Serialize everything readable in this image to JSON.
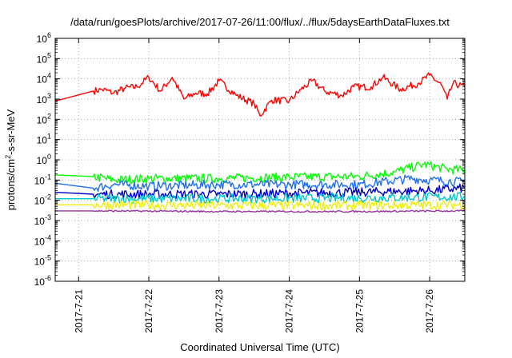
{
  "chart_data": {
    "type": "line",
    "title": "/data/run/goesPlots/archive/2017-07-26/11:00/flux/../flux/5daysEarthDataFluxes.txt",
    "xlabel": "Coordinated Universal Time (UTC)",
    "ylabel_parts": {
      "pre": "protons/cm",
      "sup": "2",
      "post": "-s-sr-MeV"
    },
    "yscale": "log",
    "ylim_exp": [
      -6,
      6
    ],
    "ytick_exponents": [
      "-6",
      "-5",
      "-4",
      "-3",
      "-2",
      "-1",
      "0",
      "1",
      "2",
      "3",
      "4",
      "5",
      "6"
    ],
    "ytick_base": "10",
    "xlim": [
      "2017-07-20 16:00",
      "2017-07-26 12:00"
    ],
    "x_ticks": [
      "2017-7-21",
      "2017-7-22",
      "2017-7-23",
      "2017-7-24",
      "2017-7-25",
      "2017-7-26"
    ],
    "grid": true,
    "legend": "none",
    "series": [
      {
        "color": "#ff0000",
        "points": [
          [
            "2017-07-20 16:00",
            800
          ],
          [
            "2017-07-21 05:00",
            2500
          ],
          [
            "2017-07-21 08:00",
            3000
          ],
          [
            "2017-07-21 12:00",
            2000
          ],
          [
            "2017-07-21 16:00",
            3500
          ],
          [
            "2017-07-21 20:00",
            4000
          ],
          [
            "2017-07-22 00:00",
            12000
          ],
          [
            "2017-07-22 04:00",
            2500
          ],
          [
            "2017-07-22 08:00",
            12000
          ],
          [
            "2017-07-22 12:00",
            1000
          ],
          [
            "2017-07-22 16:00",
            2000
          ],
          [
            "2017-07-22 20:00",
            1800
          ],
          [
            "2017-07-23 00:00",
            8000
          ],
          [
            "2017-07-23 06:00",
            1500
          ],
          [
            "2017-07-23 12:00",
            600
          ],
          [
            "2017-07-23 14:00",
            150
          ],
          [
            "2017-07-23 18:00",
            900
          ],
          [
            "2017-07-24 00:00",
            800
          ],
          [
            "2017-07-24 04:00",
            3000
          ],
          [
            "2017-07-24 08:00",
            8000
          ],
          [
            "2017-07-24 12:00",
            2500
          ],
          [
            "2017-07-24 18:00",
            1500
          ],
          [
            "2017-07-24 22:00",
            4000
          ],
          [
            "2017-07-25 04:00",
            4000
          ],
          [
            "2017-07-25 08:00",
            12000
          ],
          [
            "2017-07-25 14:00",
            3000
          ],
          [
            "2017-07-25 20:00",
            6000
          ],
          [
            "2017-07-26 00:00",
            15000
          ],
          [
            "2017-07-26 04:00",
            5000
          ],
          [
            "2017-07-26 06:00",
            1000
          ],
          [
            "2017-07-26 08:00",
            6000
          ],
          [
            "2017-07-26 12:00",
            4000
          ]
        ]
      },
      {
        "color": "#00ff00",
        "points": [
          [
            "2017-07-20 16:00",
            0.18
          ],
          [
            "2017-07-21 05:00",
            0.15
          ],
          [
            "2017-07-21 12:00",
            0.1
          ],
          [
            "2017-07-22 00:00",
            0.12
          ],
          [
            "2017-07-23 00:00",
            0.12
          ],
          [
            "2017-07-24 00:00",
            0.14
          ],
          [
            "2017-07-25 00:00",
            0.15
          ],
          [
            "2017-07-25 12:00",
            0.25
          ],
          [
            "2017-07-25 22:00",
            0.6
          ],
          [
            "2017-07-26 06:00",
            0.35
          ],
          [
            "2017-07-26 12:00",
            0.3
          ]
        ]
      },
      {
        "color": "#1e6ff0",
        "points": [
          [
            "2017-07-20 16:00",
            0.07
          ],
          [
            "2017-07-21 05:00",
            0.04
          ],
          [
            "2017-07-21 12:00",
            0.06
          ],
          [
            "2017-07-22 00:00",
            0.05
          ],
          [
            "2017-07-23 00:00",
            0.06
          ],
          [
            "2017-07-24 00:00",
            0.06
          ],
          [
            "2017-07-25 00:00",
            0.06
          ],
          [
            "2017-07-25 18:00",
            0.12
          ],
          [
            "2017-07-26 00:00",
            0.1
          ],
          [
            "2017-07-26 12:00",
            0.08
          ]
        ]
      },
      {
        "color": "#0000cc",
        "points": [
          [
            "2017-07-20 16:00",
            0.025
          ],
          [
            "2017-07-21 05:00",
            0.02
          ],
          [
            "2017-07-22 00:00",
            0.02
          ],
          [
            "2017-07-23 00:00",
            0.02
          ],
          [
            "2017-07-24 00:00",
            0.022
          ],
          [
            "2017-07-25 00:00",
            0.025
          ],
          [
            "2017-07-26 00:00",
            0.03
          ],
          [
            "2017-07-26 12:00",
            0.04
          ]
        ]
      },
      {
        "color": "#00c8c8",
        "points": [
          [
            "2017-07-20 16:00",
            0.012
          ],
          [
            "2017-07-21 05:00",
            0.012
          ],
          [
            "2017-07-23 00:00",
            0.012
          ],
          [
            "2017-07-25 00:00",
            0.013
          ],
          [
            "2017-07-26 12:00",
            0.015
          ]
        ]
      },
      {
        "color": "#f0f000",
        "points": [
          [
            "2017-07-20 16:00",
            0.006
          ],
          [
            "2017-07-21 05:00",
            0.006
          ],
          [
            "2017-07-23 00:00",
            0.0055
          ],
          [
            "2017-07-25 00:00",
            0.0055
          ],
          [
            "2017-07-26 12:00",
            0.006
          ]
        ]
      },
      {
        "color": "#993399",
        "points": [
          [
            "2017-07-20 16:00",
            0.003
          ],
          [
            "2017-07-21 05:00",
            0.003
          ],
          [
            "2017-07-23 00:00",
            0.0028
          ],
          [
            "2017-07-25 00:00",
            0.0028
          ],
          [
            "2017-07-26 12:00",
            0.003
          ]
        ]
      }
    ]
  }
}
